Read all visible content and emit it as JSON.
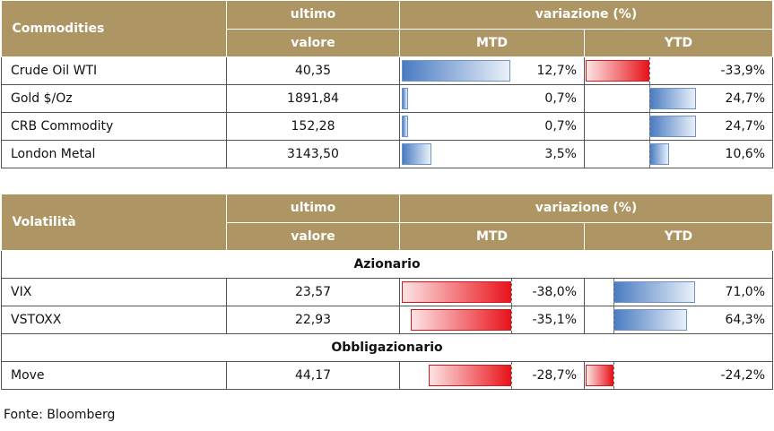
{
  "commodities": {
    "title": "Commodities",
    "col_last_1": "ultimo",
    "col_last_2": "valore",
    "col_change": "variazione (%)",
    "col_mtd": "MTD",
    "col_ytd": "YTD",
    "rows": [
      {
        "name": "Crude Oil WTI",
        "value": "40,35",
        "mtd": "12,7%",
        "mtd_num": 12.7,
        "ytd": "-33,9%",
        "ytd_num": -33.9
      },
      {
        "name": "Gold $/Oz",
        "value": "1891,84",
        "mtd": "0,7%",
        "mtd_num": 0.7,
        "ytd": "24,7%",
        "ytd_num": 24.7
      },
      {
        "name": "CRB Commodity",
        "value": "152,28",
        "mtd": "0,7%",
        "mtd_num": 0.7,
        "ytd": "24,7%",
        "ytd_num": 24.7
      },
      {
        "name": "London Metal",
        "value": "3143,50",
        "mtd": "3,5%",
        "mtd_num": 3.5,
        "ytd": "10,6%",
        "ytd_num": 10.6
      }
    ]
  },
  "volatility": {
    "title": "Volatilità",
    "col_last_1": "ultimo",
    "col_last_2": "valore",
    "col_change": "variazione (%)",
    "col_mtd": "MTD",
    "col_ytd": "YTD",
    "section_equity": "Azionario",
    "section_bond": "Obbligazionario",
    "equity_rows": [
      {
        "name": "VIX",
        "value": "23,57",
        "mtd": "-38,0%",
        "mtd_num": -38.0,
        "ytd": "71,0%",
        "ytd_num": 71.0
      },
      {
        "name": "VSTOXX",
        "value": "22,93",
        "mtd": "-35,1%",
        "mtd_num": -35.1,
        "ytd": "64,3%",
        "ytd_num": 64.3
      }
    ],
    "bond_rows": [
      {
        "name": "Move",
        "value": "44,17",
        "mtd": "-28,7%",
        "mtd_num": -28.7,
        "ytd": "-24,2%",
        "ytd_num": -24.2
      }
    ]
  },
  "source": "Fonte: Bloomberg",
  "colors": {
    "header": "#ad9664",
    "positive": "#4a7cc2",
    "negative": "#e8141c"
  }
}
